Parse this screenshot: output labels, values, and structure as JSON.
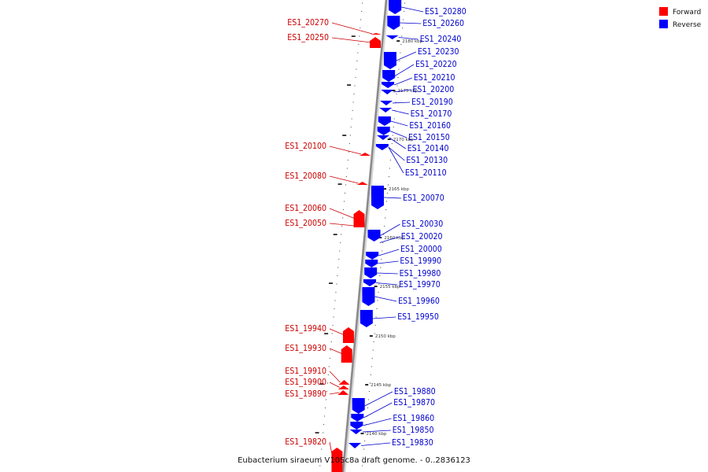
{
  "legend": [
    {
      "label": "Forward",
      "color": "#ff0000"
    },
    {
      "label": "Reverse",
      "color": "#0000ff"
    }
  ],
  "caption": "Eubacterium siraeum V10Sc8a draft genome. - 0..2836123",
  "scale_ticks": [
    {
      "label": "2180 kbp",
      "bp": 2180000
    },
    {
      "label": "2175 kbp",
      "bp": 2175000
    },
    {
      "label": "2170 kbp",
      "bp": 2170000
    },
    {
      "label": "2165 kbp",
      "bp": 2165000
    },
    {
      "label": "2160 kbp",
      "bp": 2160000
    },
    {
      "label": "2155 kbp",
      "bp": 2155000
    },
    {
      "label": "2150 kbp",
      "bp": 2150000
    },
    {
      "label": "2145 kbp",
      "bp": 2145000
    },
    {
      "label": "2140 kbp",
      "bp": 2140000
    }
  ],
  "genes_forward": [
    {
      "name": "ES1_20270"
    },
    {
      "name": "ES1_20250"
    },
    {
      "name": "ES1_20100"
    },
    {
      "name": "ES1_20080"
    },
    {
      "name": "ES1_20060"
    },
    {
      "name": "ES1_20050"
    },
    {
      "name": "ES1_19940"
    },
    {
      "name": "ES1_19930"
    },
    {
      "name": "ES1_19910"
    },
    {
      "name": "ES1_19900"
    },
    {
      "name": "ES1_19890"
    },
    {
      "name": "ES1_19820"
    }
  ],
  "genes_reverse": [
    {
      "name": "ES1_20280"
    },
    {
      "name": "ES1_20260"
    },
    {
      "name": "ES1_20240"
    },
    {
      "name": "ES1_20230"
    },
    {
      "name": "ES1_20220"
    },
    {
      "name": "ES1_20210"
    },
    {
      "name": "ES1_20200"
    },
    {
      "name": "ES1_20190"
    },
    {
      "name": "ES1_20170"
    },
    {
      "name": "ES1_20160"
    },
    {
      "name": "ES1_20150"
    },
    {
      "name": "ES1_20140"
    },
    {
      "name": "ES1_20130"
    },
    {
      "name": "ES1_20110"
    },
    {
      "name": "ES1_20070"
    },
    {
      "name": "ES1_20030"
    },
    {
      "name": "ES1_20020"
    },
    {
      "name": "ES1_20000"
    },
    {
      "name": "ES1_19990"
    },
    {
      "name": "ES1_19980"
    },
    {
      "name": "ES1_19970"
    },
    {
      "name": "ES1_19960"
    },
    {
      "name": "ES1_19950"
    },
    {
      "name": "ES1_19880"
    },
    {
      "name": "ES1_19870"
    },
    {
      "name": "ES1_19860"
    },
    {
      "name": "ES1_19850"
    },
    {
      "name": "ES1_19830"
    }
  ]
}
